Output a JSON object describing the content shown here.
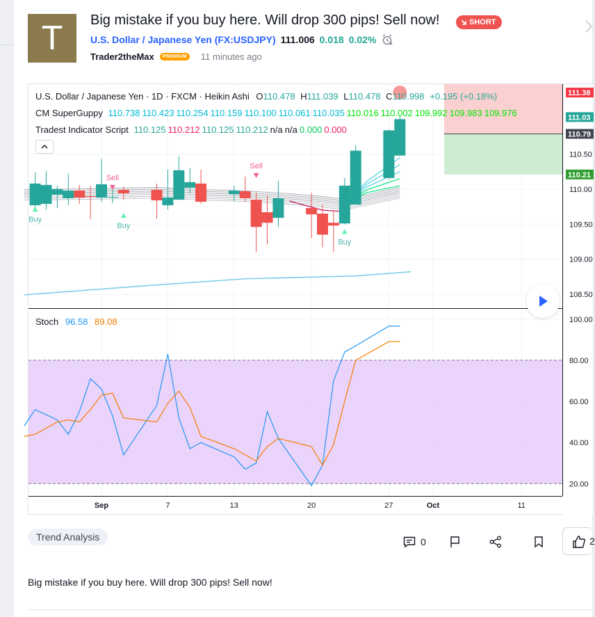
{
  "idea": {
    "avatar_letter": "T",
    "title": "Big mistake if you buy here. Will drop 300 pips! Sell now!",
    "badge": "SHORT",
    "symbol_link": "U.S. Dollar / Japanese Yen (FX:USDJPY)",
    "price": "111.006",
    "change": "0.018",
    "change_pct": "0.02%",
    "author": "Trader2theMax",
    "author_badge": "PREMIUM",
    "time_ago": "11 minutes ago",
    "tag": "Trend Analysis",
    "comments_count": "0",
    "likes_count": "2",
    "description": "Big mistake if you buy here. Will drop 300 pips! Sell now!"
  },
  "chart_legend": {
    "main": "U.S. Dollar / Japanese Yen · 1D · FXCM · Heikin Ashi",
    "o_label": "O",
    "o": "110.478",
    "h_label": "H",
    "h": "111.039",
    "l_label": "L",
    "l": "110.478",
    "c_label": "C",
    "c": "110.998",
    "chg": "+0.195 (+0.18%)",
    "guppy_name": "CM SuperGuppy",
    "guppy_cyan": [
      "110.738",
      "110.423",
      "110.254",
      "110.159",
      "110.100",
      "110.061",
      "110.035"
    ],
    "guppy_green": [
      "110.016",
      "110.002",
      "109.992",
      "109.983",
      "109.976"
    ],
    "tradest_name": "Tradest Indicator Script",
    "tradest_vals": [
      {
        "v": "110.125",
        "c": "#26a69a"
      },
      {
        "v": "110.212",
        "c": "#e91e63"
      },
      {
        "v": "110.125",
        "c": "#26a69a"
      },
      {
        "v": "110.212",
        "c": "#26a69a"
      },
      {
        "v": "n/a",
        "c": "#131722"
      },
      {
        "v": "n/a",
        "c": "#131722"
      },
      {
        "v": "0.000",
        "c": "#00c853"
      },
      {
        "v": "0.000",
        "c": "#e91e63"
      }
    ],
    "stoch_name": "Stoch",
    "stoch_k": "96.58",
    "stoch_d": "89.08"
  },
  "colors": {
    "up": "#26a69a",
    "down": "#ef5350",
    "accent": "#2962ff",
    "stoch_k": "#2196f3",
    "stoch_d": "#f57c00"
  },
  "chart_data": [
    {
      "type": "candlestick",
      "title": "U.S. Dollar / Japanese Yen · 1D · FXCM · Heikin Ashi",
      "ylim": [
        108.3,
        111.5
      ],
      "y_ticks": [
        "110.50",
        "110.00",
        "109.50",
        "109.00",
        "108.50"
      ],
      "price_tags": [
        {
          "label": "111.38",
          "value": 111.38,
          "bg": "#f23645"
        },
        {
          "label": "111.03",
          "value": 111.03,
          "bg": "#26a69a"
        },
        {
          "label": "110.79",
          "value": 110.79,
          "bg": "#434651"
        },
        {
          "label": "110.21",
          "value": 110.21,
          "bg": "#2e9e30"
        }
      ],
      "x_ticks": [
        "Sep",
        "7",
        "13",
        "20",
        "27",
        "Oct",
        "11"
      ],
      "x_tick_days": [
        1,
        7,
        13,
        20,
        27,
        31,
        39
      ],
      "candles": [
        {
          "d": -5,
          "o": 109.77,
          "h": 110.24,
          "l": 109.71,
          "c": 110.08
        },
        {
          "d": -4,
          "o": 109.79,
          "h": 110.26,
          "l": 109.71,
          "c": 110.06
        },
        {
          "d": -3,
          "o": 109.92,
          "h": 110.05,
          "l": 109.73,
          "c": 110.0
        },
        {
          "d": -2,
          "o": 109.87,
          "h": 110.22,
          "l": 109.77,
          "c": 109.98
        },
        {
          "d": -1,
          "o": 109.98,
          "h": 110.06,
          "l": 109.79,
          "c": 109.88
        },
        {
          "d": 0,
          "o": 109.9,
          "h": 110.05,
          "l": 109.57,
          "c": 109.89
        },
        {
          "d": 1,
          "o": 109.88,
          "h": 110.43,
          "l": 109.82,
          "c": 110.07
        },
        {
          "d": 2,
          "o": 109.88,
          "h": 110.02,
          "l": 109.8,
          "c": 109.89
        },
        {
          "d": 3,
          "o": 109.99,
          "h": 110.04,
          "l": 109.85,
          "c": 109.94
        },
        {
          "d": 6,
          "o": 109.99,
          "h": 110.08,
          "l": 109.58,
          "c": 109.84
        },
        {
          "d": 7,
          "o": 109.77,
          "h": 110.28,
          "l": 109.71,
          "c": 109.88
        },
        {
          "d": 8,
          "o": 109.85,
          "h": 110.47,
          "l": 109.84,
          "c": 110.27
        },
        {
          "d": 9,
          "o": 110.02,
          "h": 110.3,
          "l": 109.94,
          "c": 110.1
        },
        {
          "d": 10,
          "o": 110.08,
          "h": 110.28,
          "l": 109.79,
          "c": 109.82
        },
        {
          "d": 13,
          "o": 109.93,
          "h": 110.05,
          "l": 109.83,
          "c": 109.98
        },
        {
          "d": 14,
          "o": 109.97,
          "h": 110.18,
          "l": 109.82,
          "c": 109.87
        },
        {
          "d": 15,
          "o": 109.85,
          "h": 109.95,
          "l": 109.1,
          "c": 109.46
        },
        {
          "d": 16,
          "o": 109.67,
          "h": 109.91,
          "l": 109.21,
          "c": 109.52
        },
        {
          "d": 17,
          "o": 109.59,
          "h": 110.12,
          "l": 109.46,
          "c": 109.87
        },
        {
          "d": 20,
          "o": 109.73,
          "h": 109.95,
          "l": 109.3,
          "c": 109.64
        },
        {
          "d": 21,
          "o": 109.65,
          "h": 109.78,
          "l": 109.17,
          "c": 109.35
        },
        {
          "d": 22,
          "o": 109.52,
          "h": 109.69,
          "l": 109.1,
          "c": 109.48
        },
        {
          "d": 23,
          "o": 109.51,
          "h": 110.16,
          "l": 109.5,
          "c": 110.05
        },
        {
          "d": 24,
          "o": 109.78,
          "h": 110.63,
          "l": 109.78,
          "c": 110.55
        },
        {
          "d": 27,
          "o": 110.16,
          "h": 110.85,
          "l": 110.14,
          "c": 110.84
        },
        {
          "d": 28,
          "o": 110.48,
          "h": 111.04,
          "l": 110.48,
          "c": 111.0
        }
      ],
      "signals": [
        {
          "label": "Buy",
          "d": -5,
          "type": "buy",
          "value": 109.72
        },
        {
          "label": "Sell",
          "d": 2,
          "type": "sell",
          "value": 110.03
        },
        {
          "label": "Buy",
          "d": 3,
          "type": "buy",
          "value": 109.63
        },
        {
          "label": "Sell",
          "d": 15,
          "type": "sell",
          "value": 110.2
        },
        {
          "label": "Buy",
          "d": 23,
          "type": "buy",
          "value": 109.4
        }
      ],
      "ma_line": {
        "x": [
          -6,
          5,
          14,
          24,
          29
        ],
        "y": [
          108.49,
          108.62,
          108.72,
          108.76,
          108.82
        ]
      }
    },
    {
      "type": "line",
      "name": "Stoch",
      "ylim": [
        14,
        105
      ],
      "y_ticks": [
        "100.00",
        "80.00",
        "60.00",
        "40.00",
        "20.00"
      ],
      "bands": [
        20,
        80
      ],
      "series": [
        {
          "name": "K",
          "color": "#2196f3",
          "x": [
            -6,
            -5,
            -3,
            -2,
            -1,
            0,
            1,
            2,
            3,
            6,
            7,
            8,
            9,
            10,
            13,
            14,
            15,
            16,
            17,
            20,
            21,
            22,
            23,
            24,
            27,
            28
          ],
          "y": [
            48,
            56,
            51,
            44,
            55,
            71,
            66,
            53,
            34,
            58,
            83,
            52,
            37,
            40,
            33,
            27,
            30,
            55,
            42,
            19,
            29,
            70,
            84,
            87,
            96.58,
            96.58
          ]
        },
        {
          "name": "D",
          "color": "#f57c00",
          "x": [
            -6,
            -5,
            -3,
            -2,
            -1,
            0,
            1,
            2,
            3,
            6,
            7,
            8,
            9,
            10,
            13,
            14,
            15,
            16,
            17,
            20,
            21,
            22,
            23,
            24,
            27,
            28
          ],
          "y": [
            43,
            44,
            50,
            51,
            50,
            56,
            63,
            64,
            52,
            50,
            59,
            65,
            57,
            43,
            37,
            34,
            31,
            38,
            42,
            38,
            29,
            39,
            60,
            80,
            89.08,
            89.08
          ]
        }
      ]
    }
  ]
}
